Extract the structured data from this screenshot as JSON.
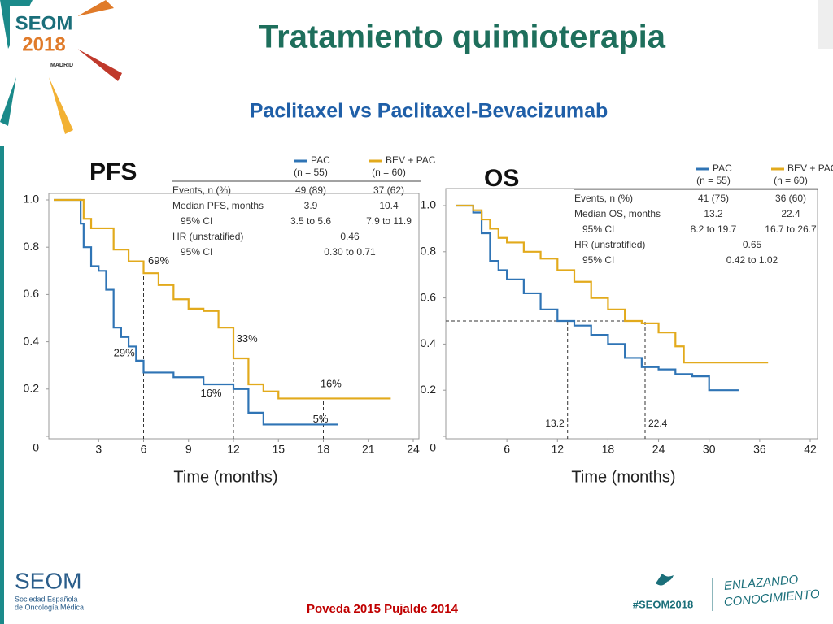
{
  "slide": {
    "title": "Tratamiento quimioterapia",
    "subtitle": "Paclitaxel vs Paclitaxel-Bevacizumab",
    "logo": [
      "SEOM",
      "2018",
      "MADRID"
    ],
    "footer_logo": "SEOM",
    "footer_society": [
      "Sociedad Española",
      "de Oncología Médica"
    ],
    "reference": "Poveda  2015  Pujalde 2014",
    "hashtag": "#SEOM2018",
    "slogan": [
      "ENLAZANDO",
      "CONOCIMIENTO"
    ]
  },
  "chart_data": [
    {
      "type": "line",
      "title": "PFS",
      "xlabel": "Time (months)",
      "xlim": [
        0,
        24
      ],
      "xticks": [
        3,
        6,
        9,
        12,
        15,
        18,
        21,
        24
      ],
      "ylim": [
        0,
        1
      ],
      "yticks": [
        0,
        0.2,
        0.4,
        0.6,
        0.8,
        {
          "value": 1,
          "label": "1.0"
        }
      ],
      "series": [
        {
          "name": "PAC",
          "color": "#2f74b5",
          "x": [
            0,
            1.8,
            2,
            2.5,
            3,
            3.5,
            4,
            4.5,
            5,
            5.5,
            6,
            8,
            10,
            12,
            13,
            14,
            19
          ],
          "values": [
            1,
            0.9,
            0.8,
            0.72,
            0.7,
            0.62,
            0.46,
            0.42,
            0.38,
            0.32,
            0.27,
            0.25,
            0.22,
            0.2,
            0.1,
            0.05,
            0.05
          ]
        },
        {
          "name": "BEV + PAC",
          "color": "#e2aa1c",
          "x": [
            0,
            2,
            2.5,
            4,
            5,
            6,
            7,
            8,
            9,
            10,
            11,
            12,
            13,
            14,
            15,
            22.5
          ],
          "values": [
            1,
            0.92,
            0.88,
            0.79,
            0.74,
            0.69,
            0.64,
            0.58,
            0.54,
            0.53,
            0.46,
            0.33,
            0.22,
            0.19,
            0.16,
            0.16
          ]
        }
      ],
      "table": {
        "header": [
          "(n = 55)",
          "(n = 60)"
        ],
        "rows": [
          [
            "Events, n (%)",
            "49 (89)",
            "37 (62)"
          ],
          [
            "Median PFS, months",
            "3.9",
            "10.4"
          ],
          [
            "95% CI",
            "3.5 to 5.6",
            "7.9 to 11.9"
          ],
          [
            "HR (unstratified)",
            "0.46"
          ],
          [
            "95% CI",
            "0.30 to 0.71"
          ]
        ]
      },
      "reference_x": [
        6,
        12,
        18
      ],
      "annotations": [
        "69%",
        "29%",
        "33%",
        "16%",
        "16%",
        "5%"
      ]
    },
    {
      "type": "line",
      "title": "OS",
      "xlabel": "Time (months)",
      "xlim": [
        0,
        42
      ],
      "xticks": [
        6,
        12,
        18,
        24,
        30,
        36,
        42
      ],
      "ylim": [
        0,
        1
      ],
      "yticks": [
        0,
        0.2,
        0.4,
        0.6,
        0.8,
        {
          "value": 1,
          "label": "1.0"
        }
      ],
      "series": [
        {
          "name": "PAC",
          "color": "#2f74b5",
          "x": [
            0,
            2,
            3,
            4,
            5,
            6,
            8,
            10,
            12,
            14,
            16,
            18,
            20,
            22,
            24,
            26,
            28,
            30,
            33.5
          ],
          "values": [
            1,
            0.97,
            0.88,
            0.76,
            0.72,
            0.68,
            0.62,
            0.55,
            0.5,
            0.48,
            0.44,
            0.4,
            0.34,
            0.3,
            0.29,
            0.27,
            0.26,
            0.2,
            0.2
          ]
        },
        {
          "name": "BEV + PAC",
          "color": "#e2aa1c",
          "x": [
            0,
            2,
            3,
            4,
            5,
            6,
            8,
            10,
            12,
            14,
            16,
            18,
            20,
            22,
            24,
            26,
            27,
            37
          ],
          "values": [
            1,
            0.98,
            0.94,
            0.9,
            0.86,
            0.84,
            0.8,
            0.77,
            0.72,
            0.67,
            0.6,
            0.55,
            0.5,
            0.49,
            0.45,
            0.39,
            0.32,
            0.32
          ]
        }
      ],
      "table": {
        "header": [
          "(n = 55)",
          "(n = 60)"
        ],
        "rows": [
          [
            "Events, n (%)",
            "41 (75)",
            "36 (60)"
          ],
          [
            "Median OS, months",
            "13.2",
            "22.4"
          ],
          [
            "95% CI",
            "8.2 to 19.7",
            "16.7 to 26.7"
          ],
          [
            "HR (unstratified)",
            "0.65"
          ],
          [
            "95% CI",
            "0.42 to 1.02"
          ]
        ]
      },
      "reference_x": [
        13.2,
        22.4
      ],
      "reference_y": [
        0.5
      ]
    }
  ]
}
